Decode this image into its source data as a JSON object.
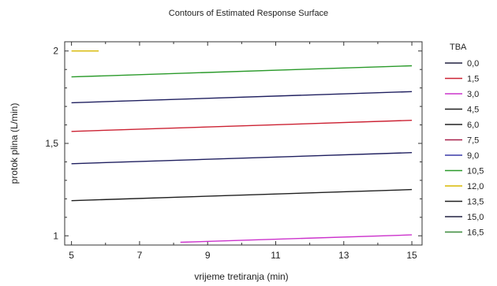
{
  "chart_data": {
    "type": "line",
    "title": "Contours of Estimated Response Surface",
    "xlabel": "vrijeme tretiranja (min)",
    "ylabel": "protok plina (L/min)",
    "xlim": [
      4.8,
      15.3
    ],
    "ylim": [
      0.95,
      2.05
    ],
    "x_ticks": [
      5,
      7,
      9,
      11,
      13,
      15
    ],
    "x_tick_labels": [
      "5",
      "7",
      "9",
      "11",
      "13",
      "15"
    ],
    "y_ticks": [
      1,
      1.5,
      2
    ],
    "y_tick_labels": [
      "1",
      "1,5",
      "2"
    ],
    "grid": false,
    "legend_title": "TBA",
    "legend_position": "right",
    "legend": [
      {
        "label": "0,0",
        "color": "#202040"
      },
      {
        "label": "1,5",
        "color": "#cc2233"
      },
      {
        "label": "3,0",
        "color": "#cc33cc"
      },
      {
        "label": "4,5",
        "color": "#202020"
      },
      {
        "label": "6,0",
        "color": "#202020"
      },
      {
        "label": "7,5",
        "color": "#a8204a"
      },
      {
        "label": "9,0",
        "color": "#3a3aa8"
      },
      {
        "label": "10,5",
        "color": "#2a9a2a"
      },
      {
        "label": "12,0",
        "color": "#d8b800"
      },
      {
        "label": "13,5",
        "color": "#202020"
      },
      {
        "label": "15,0",
        "color": "#202040"
      },
      {
        "label": "16,5",
        "color": "#3a8a3a"
      }
    ],
    "series": [
      {
        "label": "3,0",
        "color": "#cc33cc",
        "x": [
          8.2,
          15.0
        ],
        "y": [
          0.965,
          1.005
        ]
      },
      {
        "label": "6,0",
        "color": "#202020",
        "x": [
          5.0,
          15.0
        ],
        "y": [
          1.19,
          1.25
        ]
      },
      {
        "label": "7,5",
        "color": "#202060",
        "x": [
          5.0,
          15.0
        ],
        "y": [
          1.39,
          1.45
        ]
      },
      {
        "label": "9,0",
        "color": "#cc2233",
        "x": [
          5.0,
          15.0
        ],
        "y": [
          1.565,
          1.625
        ]
      },
      {
        "label": "10,5",
        "color": "#202060",
        "x": [
          5.0,
          15.0
        ],
        "y": [
          1.72,
          1.78
        ]
      },
      {
        "label": "12,0",
        "color": "#2a9a2a",
        "x": [
          5.0,
          15.0
        ],
        "y": [
          1.86,
          1.92
        ]
      },
      {
        "label": "13,5",
        "color": "#d8b800",
        "x": [
          5.0,
          5.8
        ],
        "y": [
          2.0,
          2.0
        ]
      }
    ]
  }
}
